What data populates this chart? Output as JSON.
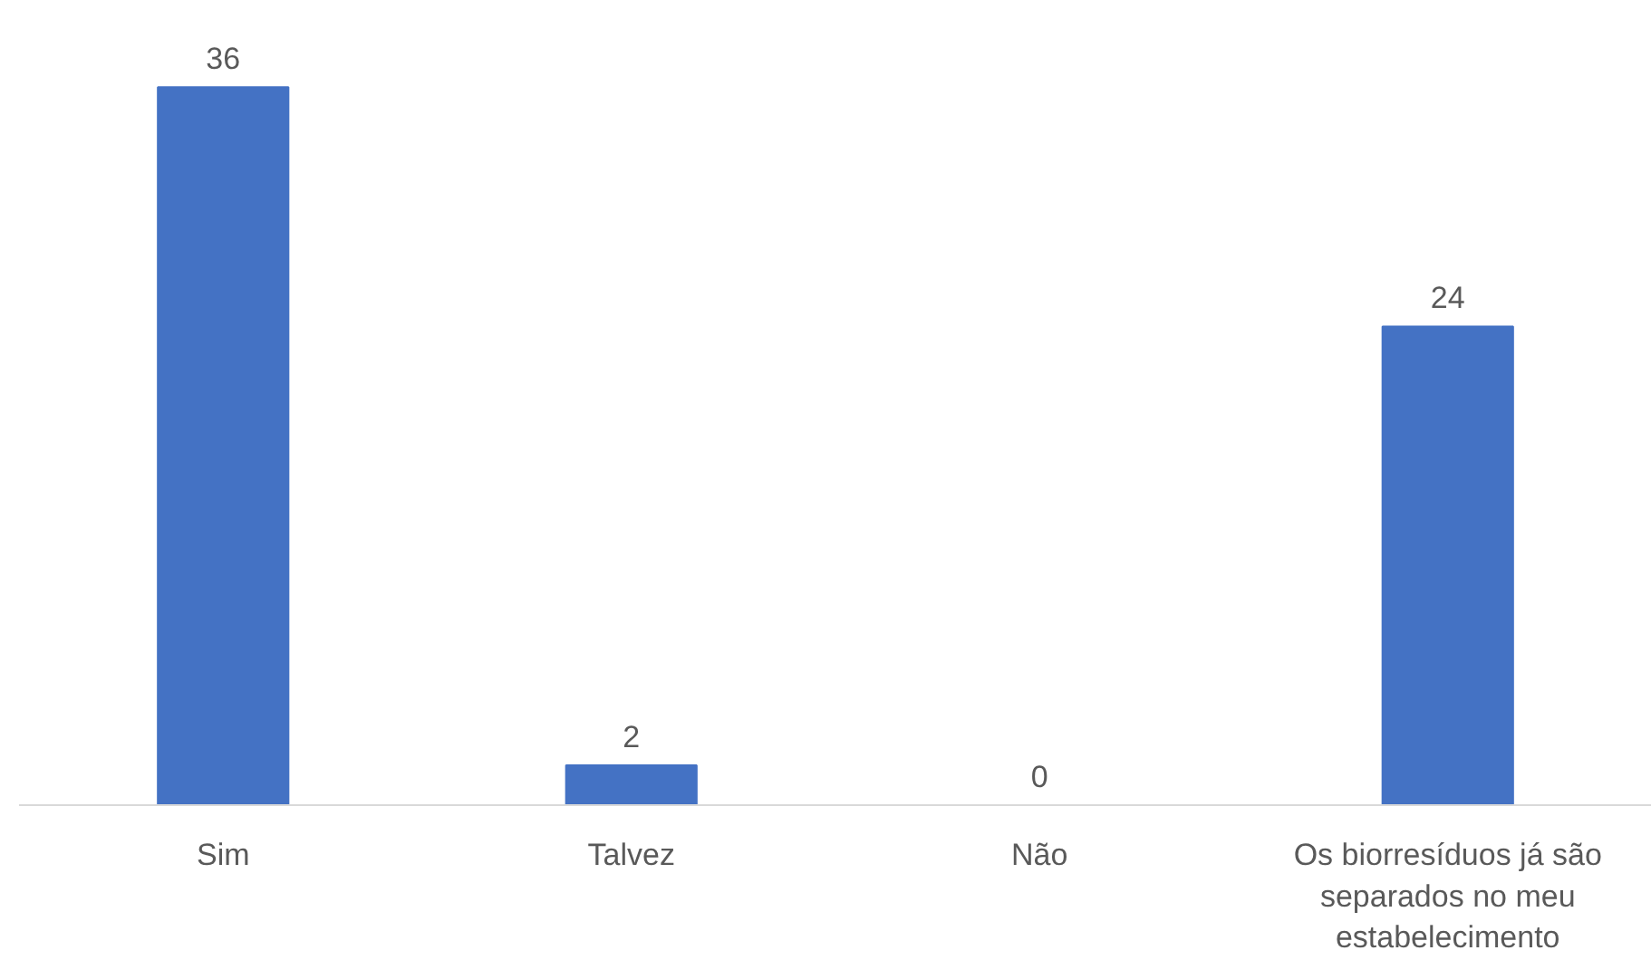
{
  "chart_data": {
    "type": "bar",
    "categories": [
      "Sim",
      "Talvez",
      "Não",
      "Os biorresíduos já são separados no meu estabelecimento"
    ],
    "values": [
      36,
      2,
      0,
      24
    ],
    "color": "#4472c4",
    "data_labels": true
  }
}
